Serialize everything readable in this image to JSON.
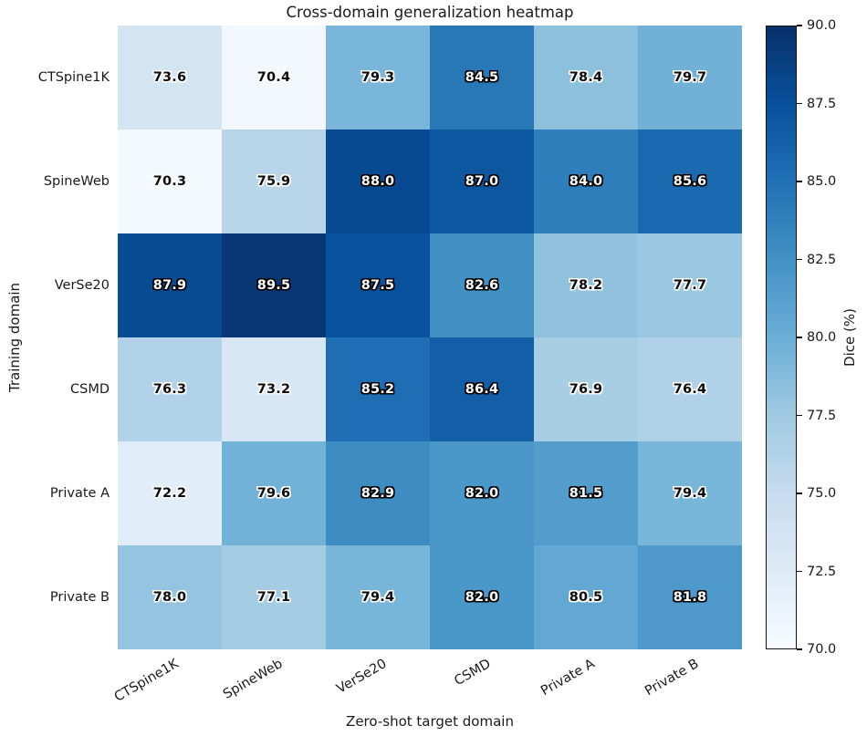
{
  "chart_data": {
    "type": "heatmap",
    "title": "Cross-domain generalization heatmap",
    "xlabel": "Zero-shot target domain",
    "ylabel": "Training domain",
    "rows": [
      "CTSpine1K",
      "SpineWeb",
      "VerSe20",
      "CSMD",
      "Private A",
      "Private B"
    ],
    "cols": [
      "CTSpine1K",
      "SpineWeb",
      "VerSe20",
      "CSMD",
      "Private A",
      "Private B"
    ],
    "values": [
      [
        73.6,
        70.4,
        79.3,
        84.5,
        78.4,
        79.7
      ],
      [
        70.3,
        75.9,
        88.0,
        87.0,
        84.0,
        85.6
      ],
      [
        87.9,
        89.5,
        87.5,
        82.6,
        78.2,
        77.7
      ],
      [
        76.3,
        73.2,
        85.2,
        86.4,
        76.9,
        76.4
      ],
      [
        72.2,
        79.6,
        82.9,
        82.0,
        81.5,
        79.4
      ],
      [
        78.0,
        77.1,
        79.4,
        82.0,
        80.5,
        81.8
      ]
    ],
    "vmin": 70.0,
    "vmax": 90.0,
    "colormap": "Blues",
    "colormap_stops": [
      "#f7fbff",
      "#deebf7",
      "#c6dbef",
      "#9ecae1",
      "#6baed6",
      "#4292c6",
      "#2171b5",
      "#08519c",
      "#08306b"
    ],
    "label_color_threshold": 81,
    "grid_on": false,
    "colorbar": {
      "label": "Dice (%)",
      "tick_labels_top_to_bottom": [
        "90.0",
        "87.5",
        "85.0",
        "82.5",
        "80.0",
        "77.5",
        "75.0",
        "72.5",
        "70.0"
      ],
      "position": "right"
    }
  }
}
